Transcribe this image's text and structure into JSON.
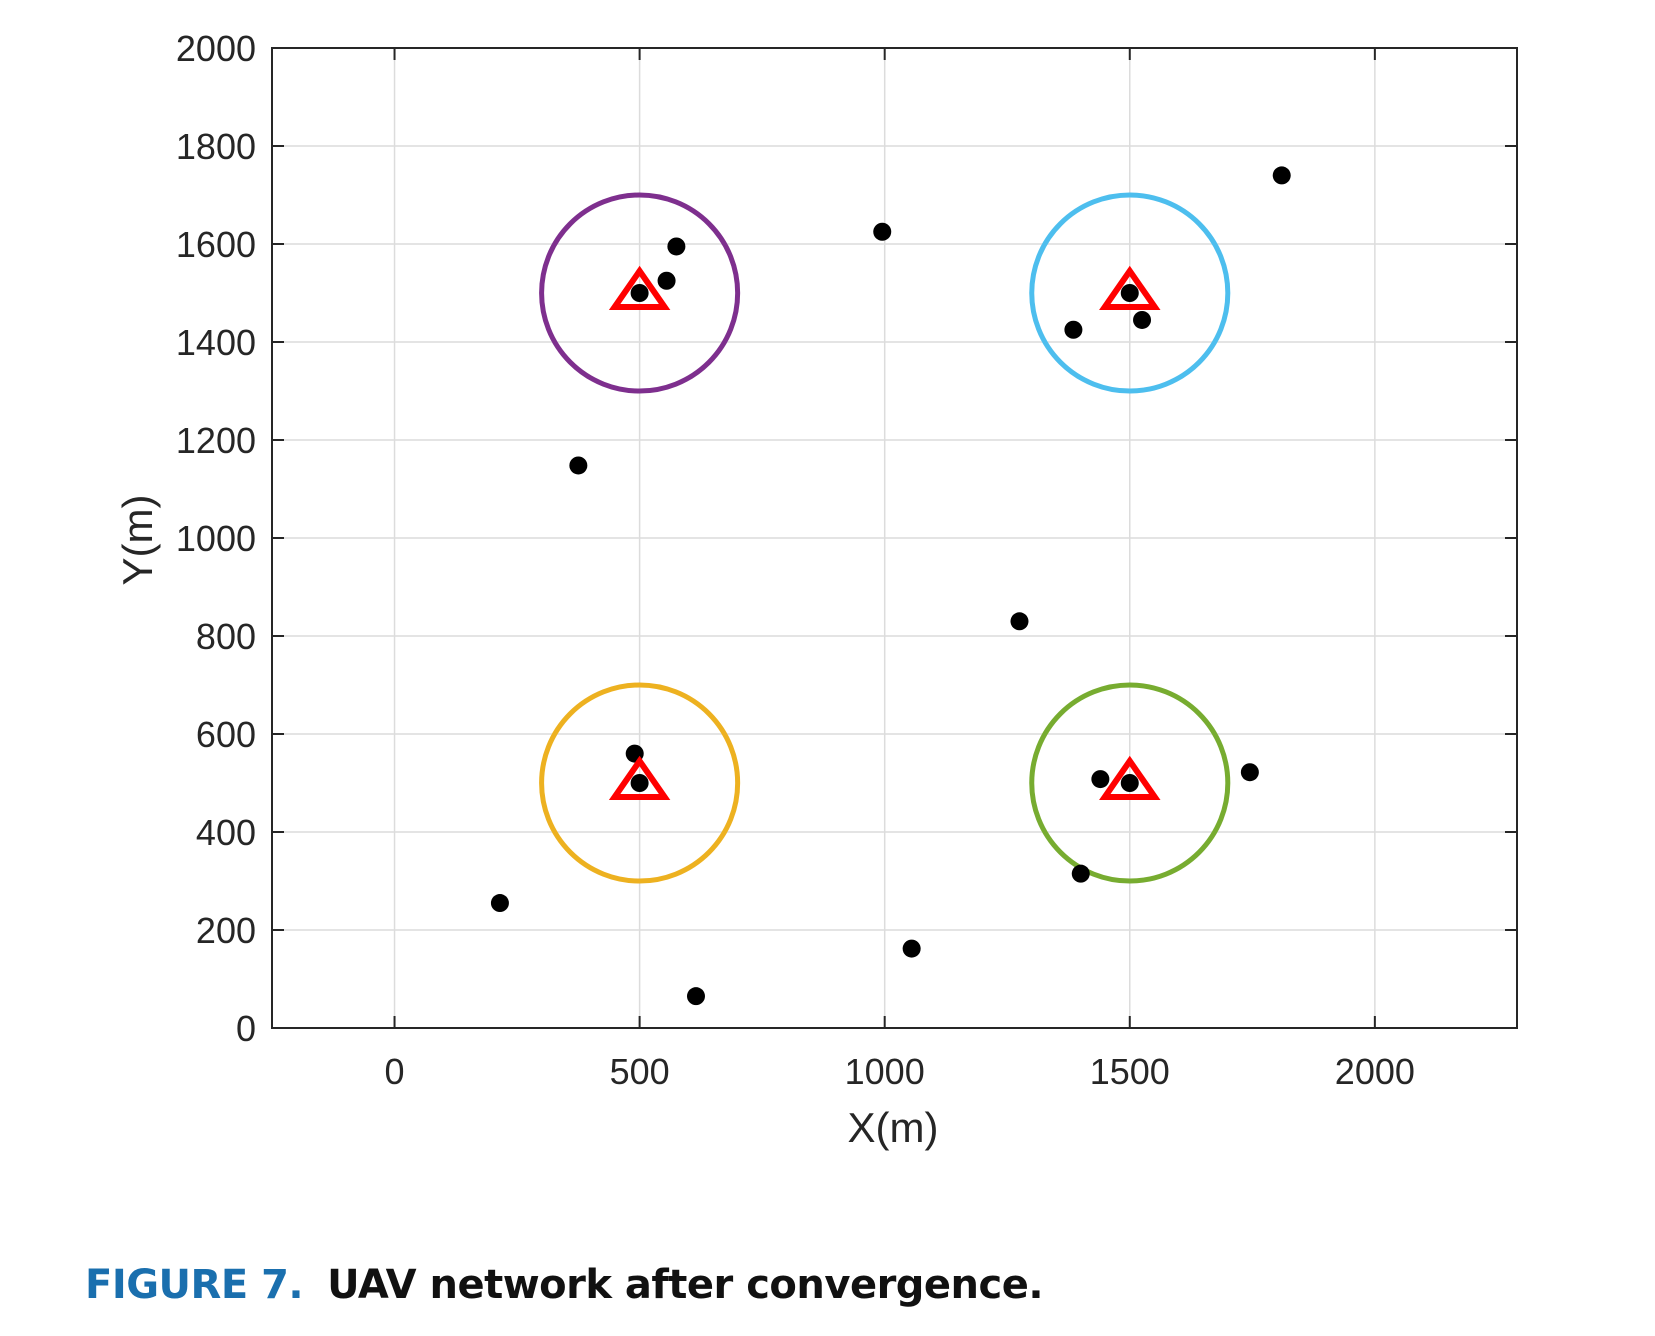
{
  "caption": {
    "label": "FIGURE 7.",
    "text": "UAV network after convergence."
  },
  "chart_data": {
    "type": "scatter",
    "xlabel": "X(m)",
    "ylabel": "Y(m)",
    "xlim": [
      -250,
      2290
    ],
    "ylim": [
      0,
      2000
    ],
    "xticks": [
      0,
      500,
      1000,
      1500,
      2000
    ],
    "yticks": [
      0,
      200,
      400,
      600,
      800,
      1000,
      1200,
      1400,
      1600,
      1800,
      2000
    ],
    "grid": true,
    "users": {
      "marker": "filled-circle",
      "color": "#000000",
      "points": [
        [
          500,
          1500
        ],
        [
          555,
          1525
        ],
        [
          575,
          1595
        ],
        [
          995,
          1625
        ],
        [
          1810,
          1740
        ],
        [
          1500,
          1500
        ],
        [
          1385,
          1425
        ],
        [
          1525,
          1445
        ],
        [
          375,
          1148
        ],
        [
          1275,
          830
        ],
        [
          490,
          560
        ],
        [
          500,
          500
        ],
        [
          1440,
          508
        ],
        [
          1500,
          500
        ],
        [
          1745,
          522
        ],
        [
          1400,
          315
        ],
        [
          215,
          255
        ],
        [
          1055,
          162
        ],
        [
          615,
          65
        ]
      ]
    },
    "uavs": {
      "marker": "triangle",
      "color": "#ff0000",
      "points": [
        [
          500,
          1500
        ],
        [
          1500,
          1500
        ],
        [
          500,
          500
        ],
        [
          1500,
          500
        ]
      ]
    },
    "coverage": [
      {
        "cx": 500,
        "cy": 1500,
        "r": 200,
        "color": "#7e2f8e"
      },
      {
        "cx": 1500,
        "cy": 1500,
        "r": 200,
        "color": "#4dbeee"
      },
      {
        "cx": 500,
        "cy": 500,
        "r": 200,
        "color": "#edb120"
      },
      {
        "cx": 1500,
        "cy": 500,
        "r": 200,
        "color": "#77ac30"
      }
    ]
  }
}
